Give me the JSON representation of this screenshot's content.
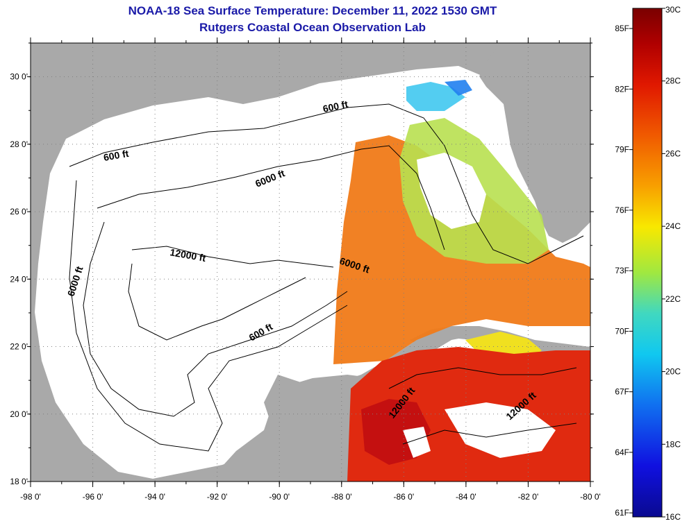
{
  "header": {
    "title": "NOAA-18 Sea Surface Temperature:  December 11, 2022 1530 GMT",
    "subtitle": "Rutgers Coastal Ocean Observation Lab"
  },
  "axes": {
    "lat_labels": [
      "30 0'",
      "28 0'",
      "26 0'",
      "24 0'",
      "22 0'",
      "20 0'",
      "18 0'"
    ],
    "lat_values": [
      30,
      28,
      26,
      24,
      22,
      20,
      18
    ],
    "lon_labels": [
      "-98 0'",
      "-96 0'",
      "-94 0'",
      "-92 0'",
      "-90 0'",
      "-88 0'",
      "-86 0'",
      "-84 0'",
      "-82 0'",
      "-80 0'"
    ],
    "lon_values": [
      -98,
      -96,
      -94,
      -92,
      -90,
      -88,
      -86,
      -84,
      -82,
      -80
    ],
    "lat_range": [
      18,
      31
    ],
    "lon_range": [
      -98,
      -80
    ]
  },
  "contours": {
    "c600_a": "600 ft",
    "c600_b": "600 ft",
    "c600_c": "600 ft",
    "c6000_a": "6000 ft",
    "c6000_b": "6000 ft",
    "c6000_c": "6000 ft",
    "c12000_a": "12000 ft",
    "c12000_b": "12000 ft",
    "c12000_c": "12000 ft"
  },
  "colorbar": {
    "f_labels": [
      "85F",
      "82F",
      "79F",
      "76F",
      "73F",
      "70F",
      "67F",
      "64F",
      "61F"
    ],
    "c_labels": [
      "30C",
      "28C",
      "26C",
      "24C",
      "22C",
      "20C",
      "18C",
      "16C"
    ],
    "c_values": [
      30,
      28,
      26,
      24,
      22,
      20,
      18,
      16
    ],
    "range_c": [
      16,
      30
    ]
  },
  "colors": {
    "land": "#a9a9a9",
    "ocean_nodata": "#ffffff",
    "title": "#1a1aa8",
    "sst_warm": "#e02a10",
    "sst_hot": "#c41010",
    "sst_orange": "#f07a18",
    "sst_yellow": "#f0e020",
    "sst_green": "#a8e060",
    "sst_cyan": "#40c8f0"
  }
}
